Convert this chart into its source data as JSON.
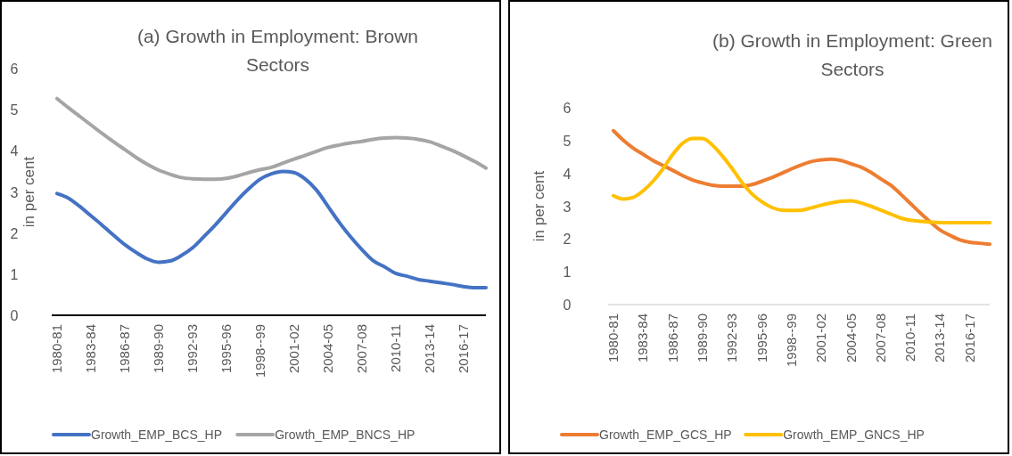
{
  "chart_data": [
    {
      "type": "line",
      "title": "(a) Growth in Employment: Brown Sectors",
      "ylabel": "in per cent",
      "categories": [
        "1980-81",
        null,
        null,
        "1983-84",
        null,
        null,
        "1986-87",
        null,
        null,
        "1989-90",
        null,
        null,
        "1992-93",
        null,
        null,
        "1995-96",
        null,
        null,
        "1998--99",
        null,
        null,
        "2001-02",
        null,
        null,
        "2004-05",
        null,
        null,
        "2007-08",
        null,
        null,
        "2010-11",
        null,
        null,
        "2013-14",
        null,
        null,
        "2016-17",
        null,
        null
      ],
      "ylim": [
        0,
        6
      ],
      "yticks": [
        0,
        1,
        2,
        3,
        4,
        5,
        6
      ],
      "grid": false,
      "legend": "bottom",
      "marker": "none",
      "line_style": "solid",
      "series": [
        {
          "name": "Growth_EMP_BCS_HP",
          "color": "#4472c4",
          "values": [
            2.96,
            2.85,
            2.65,
            2.42,
            2.19,
            1.95,
            1.72,
            1.53,
            1.37,
            1.29,
            1.32,
            1.45,
            1.64,
            1.91,
            2.19,
            2.5,
            2.81,
            3.08,
            3.31,
            3.44,
            3.5,
            3.47,
            3.31,
            3.04,
            2.65,
            2.26,
            1.91,
            1.6,
            1.33,
            1.18,
            1.02,
            0.95,
            0.87,
            0.83,
            0.79,
            0.75,
            0.7,
            0.67,
            0.67
          ]
        },
        {
          "name": "Growth_EMP_BNCS_HP",
          "color": "#a5a5a5",
          "values": [
            5.27,
            5.05,
            4.84,
            4.63,
            4.42,
            4.22,
            4.03,
            3.84,
            3.67,
            3.53,
            3.43,
            3.35,
            3.32,
            3.31,
            3.31,
            3.33,
            3.39,
            3.47,
            3.54,
            3.6,
            3.7,
            3.8,
            3.89,
            3.99,
            4.08,
            4.14,
            4.19,
            4.23,
            4.28,
            4.31,
            4.32,
            4.31,
            4.28,
            4.22,
            4.12,
            4.01,
            3.88,
            3.74,
            3.58
          ]
        }
      ]
    },
    {
      "type": "line",
      "title": "(b) Growth in Employment: Green Sectors",
      "ylabel": "in per cent",
      "categories": [
        "1980-81",
        null,
        null,
        "1983-84",
        null,
        null,
        "1986-87",
        null,
        null,
        "1989-90",
        null,
        null,
        "1992-93",
        null,
        null,
        "1995-96",
        null,
        null,
        "1998--99",
        null,
        null,
        "2001-02",
        null,
        null,
        "2004-05",
        null,
        null,
        "2007-08",
        null,
        null,
        "2010-11",
        null,
        null,
        "2013-14",
        null,
        null,
        "2016-17",
        null,
        null
      ],
      "ylim": [
        0,
        6
      ],
      "yticks": [
        0,
        1,
        2,
        3,
        4,
        5,
        6
      ],
      "grid": false,
      "legend": "bottom",
      "marker": "none",
      "line_style": "solid",
      "series": [
        {
          "name": "Growth_EMP_GCS_HP",
          "color": "#ed7d31",
          "values": [
            5.3,
            5.01,
            4.77,
            4.58,
            4.39,
            4.24,
            4.09,
            3.93,
            3.8,
            3.71,
            3.64,
            3.61,
            3.61,
            3.61,
            3.66,
            3.76,
            3.87,
            4.0,
            4.14,
            4.26,
            4.36,
            4.41,
            4.43,
            4.39,
            4.29,
            4.19,
            4.03,
            3.83,
            3.64,
            3.37,
            3.08,
            2.79,
            2.52,
            2.27,
            2.11,
            1.97,
            1.9,
            1.87,
            1.84
          ]
        },
        {
          "name": "Growth_EMP_GNCS_HP",
          "color": "#ffc000",
          "values": [
            3.32,
            3.22,
            3.27,
            3.47,
            3.76,
            4.14,
            4.58,
            4.92,
            5.06,
            5.06,
            4.86,
            4.53,
            4.14,
            3.71,
            3.37,
            3.13,
            2.96,
            2.88,
            2.87,
            2.88,
            2.95,
            3.03,
            3.1,
            3.15,
            3.16,
            3.1,
            3.0,
            2.88,
            2.76,
            2.64,
            2.57,
            2.54,
            2.52,
            2.5,
            2.5,
            2.5,
            2.5,
            2.5,
            2.5
          ]
        }
      ]
    }
  ]
}
